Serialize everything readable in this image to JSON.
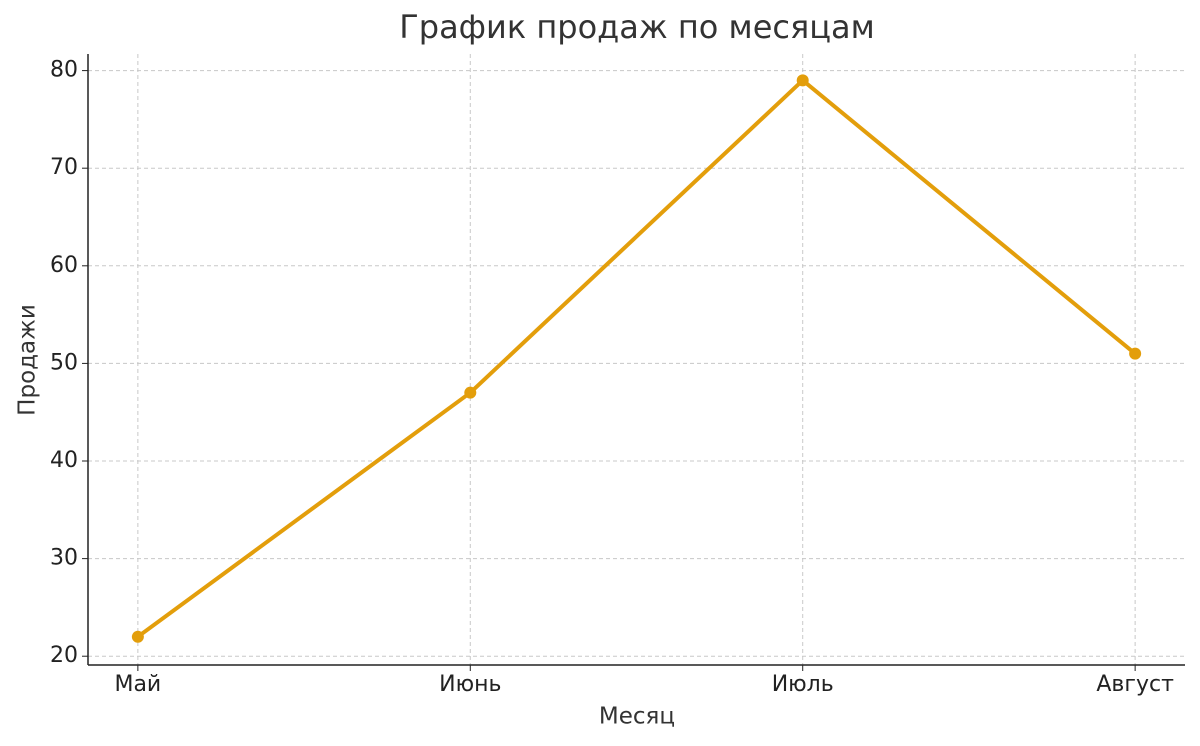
{
  "chart_data": {
    "type": "line",
    "title": "График продаж по месяцам",
    "x_label": "Месяц",
    "y_label": "Продажи",
    "categories": [
      "Май",
      "Июнь",
      "Июль",
      "Август"
    ],
    "values": [
      22,
      47,
      79,
      51
    ],
    "color": "#e39e0b",
    "ylim": [
      19.1,
      81.7
    ],
    "yticks": [
      20,
      30,
      40,
      50,
      60,
      70,
      80
    ],
    "grid": true
  }
}
